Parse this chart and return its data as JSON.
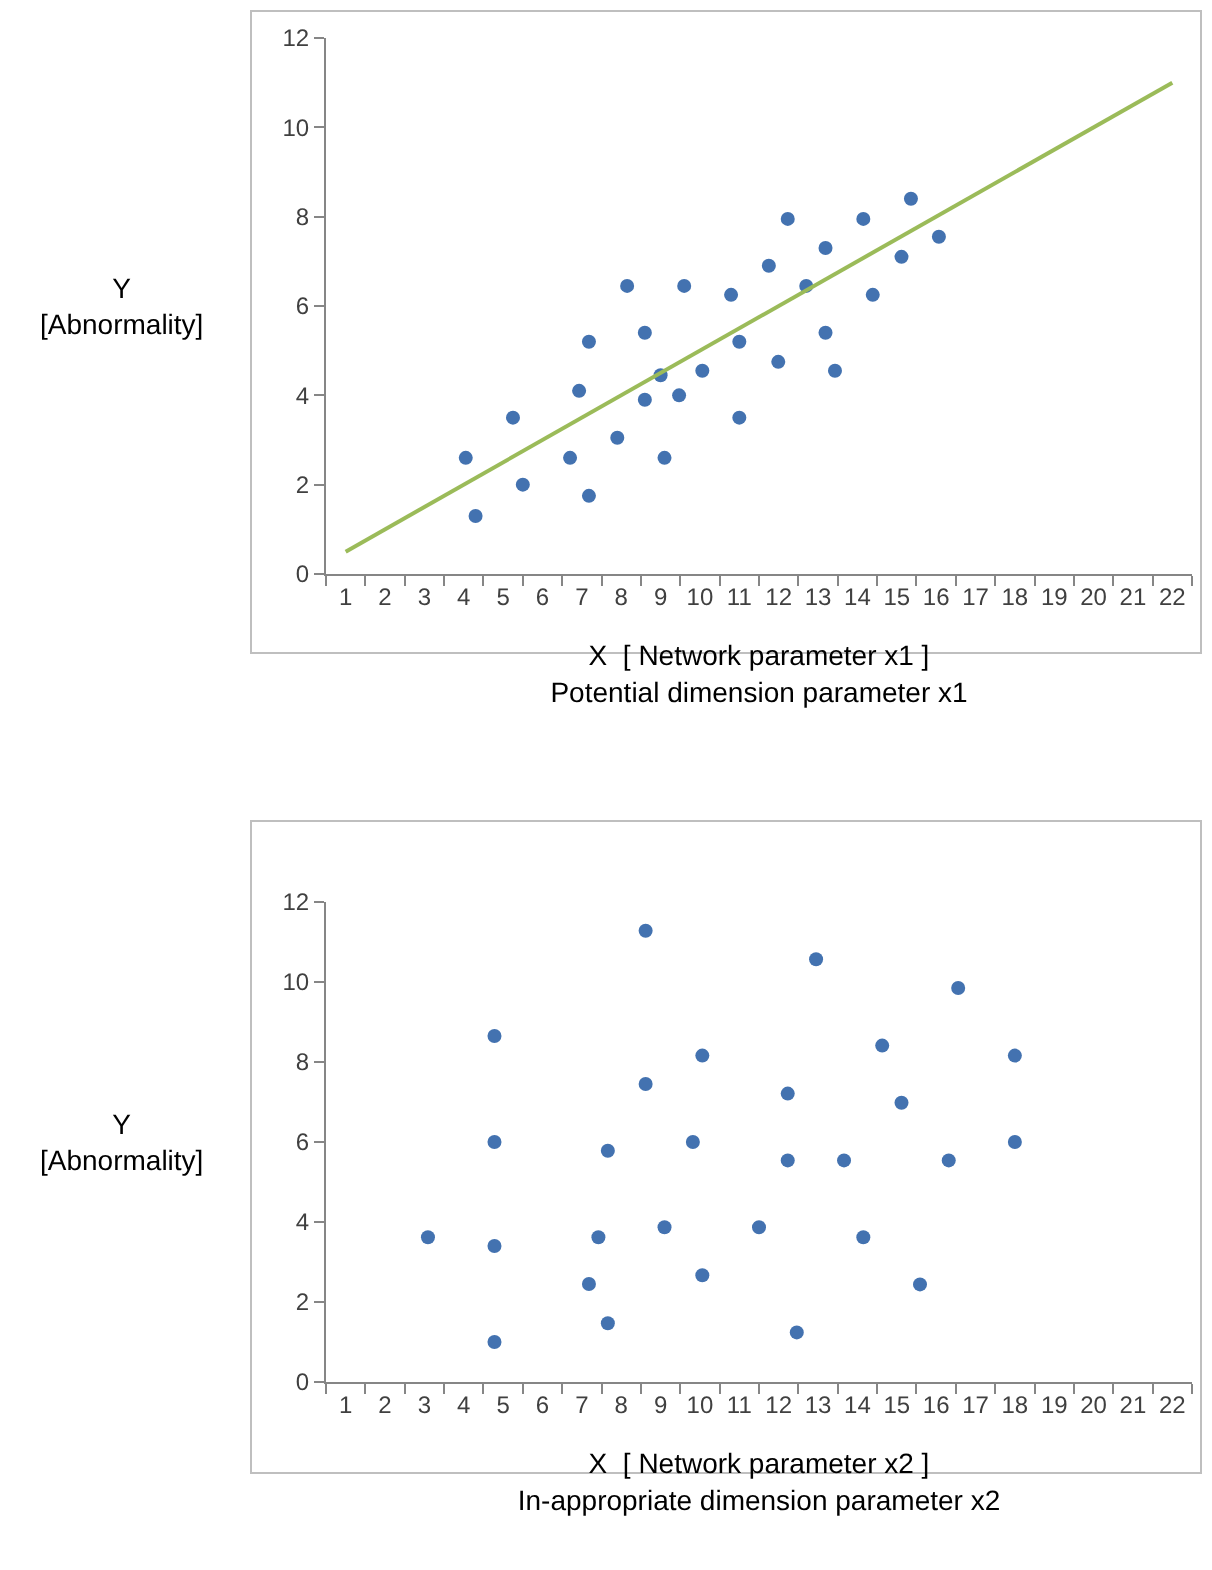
{
  "chart_data": [
    {
      "type": "scatter",
      "xlabel": "X  [ Network parameter x1 ]\nPotential dimension parameter x1",
      "ylabel": "Y\n[Abnormality]",
      "xlim": [
        0.5,
        22.5
      ],
      "xticks": [
        1,
        2,
        3,
        4,
        5,
        6,
        7,
        8,
        9,
        10,
        11,
        12,
        13,
        14,
        15,
        16,
        17,
        18,
        19,
        20,
        21,
        22
      ],
      "ylim": [
        0,
        12
      ],
      "yticks": [
        0,
        2,
        4,
        6,
        8,
        10,
        12
      ],
      "marker": "circle",
      "series": [
        {
          "type": "scatter",
          "color": "#4372b0",
          "x": [
            4.05,
            4.3,
            5.25,
            5.5,
            6.7,
            6.93,
            7.18,
            7.18,
            7.9,
            8.15,
            8.6,
            8.6,
            9.0,
            9.1,
            9.47,
            9.6,
            10.06,
            10.79,
            11.0,
            11.0,
            11.75,
            11.99,
            12.23,
            12.7,
            13.19,
            13.19,
            13.43,
            14.15,
            14.39,
            15.12,
            15.36,
            16.07
          ],
          "values": [
            2.6,
            1.3,
            3.5,
            2.0,
            2.6,
            4.1,
            5.2,
            1.75,
            3.05,
            6.45,
            5.4,
            3.9,
            4.45,
            2.6,
            4.0,
            6.45,
            4.55,
            6.25,
            5.2,
            3.5,
            6.9,
            4.75,
            7.95,
            6.45,
            7.3,
            5.4,
            4.55,
            7.95,
            6.25,
            7.1,
            8.4,
            7.55
          ]
        },
        {
          "type": "line",
          "color": "#9bbb59",
          "marker": "none",
          "x": [
            1,
            22
          ],
          "values": [
            0.5,
            11
          ]
        }
      ]
    },
    {
      "type": "scatter",
      "xlabel": "X  [ Network parameter x2 ]\nIn-appropriate dimension parameter x2",
      "ylabel": "Y\n[Abnormality]",
      "xlim": [
        0.5,
        22.5
      ],
      "xticks": [
        1,
        2,
        3,
        4,
        5,
        6,
        7,
        8,
        9,
        10,
        11,
        12,
        13,
        14,
        15,
        16,
        17,
        18,
        19,
        20,
        21,
        22
      ],
      "ylim": [
        0,
        12
      ],
      "yticks": [
        0,
        2,
        4,
        6,
        8,
        10,
        12
      ],
      "marker": "circle",
      "series": [
        {
          "type": "scatter",
          "color": "#4372b0",
          "x": [
            3.09,
            4.78,
            4.78,
            4.78,
            4.78,
            7.18,
            7.42,
            7.66,
            7.66,
            8.62,
            8.62,
            9.1,
            9.82,
            10.06,
            10.06,
            11.5,
            12.23,
            12.23,
            12.46,
            12.95,
            13.66,
            14.15,
            14.63,
            15.12,
            15.59,
            16.32,
            16.56,
            18.0,
            18.0
          ],
          "values": [
            3.62,
            8.65,
            6.0,
            3.4,
            1.0,
            2.45,
            3.62,
            5.78,
            1.47,
            11.28,
            7.45,
            3.87,
            6.0,
            8.16,
            2.67,
            3.87,
            7.21,
            5.54,
            1.24,
            10.57,
            5.54,
            3.62,
            8.41,
            6.98,
            2.44,
            5.54,
            9.85,
            8.16,
            6.0
          ]
        }
      ]
    }
  ]
}
